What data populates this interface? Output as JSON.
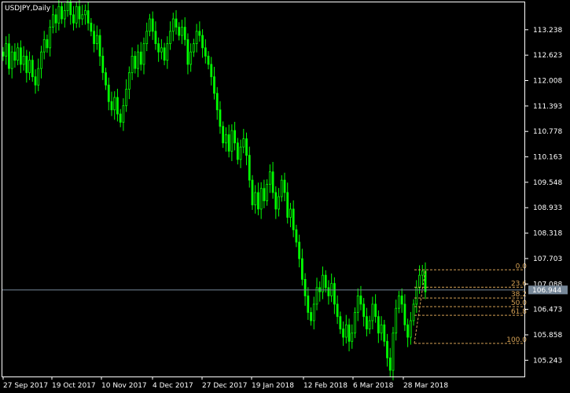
{
  "chart_title": "USDJPY,Daily",
  "colors": {
    "background": "#000000",
    "axis": "#ffffff",
    "candle": "#00ff00",
    "fibonacci": "#d4a054",
    "price_line": "#778899",
    "price_tag_bg": "#778899",
    "price_tag_text": "#ffffff"
  },
  "chart_data": {
    "type": "candlestick",
    "title": "USDJPY,Daily",
    "symbol": "USDJPY",
    "timeframe": "Daily",
    "y_ticks": [
      "113.238",
      "112.623",
      "112.008",
      "111.393",
      "110.778",
      "110.163",
      "109.548",
      "108.933",
      "108.318",
      "107.703",
      "107.088",
      "106.473",
      "105.858",
      "105.243"
    ],
    "x_ticks": [
      "27 Sep 2017",
      "19 Oct 2017",
      "10 Nov 2017",
      "4 Dec 2017",
      "27 Dec 2017",
      "19 Jan 2018",
      "12 Feb 2018",
      "6 Mar 2018",
      "28 Mar 2018"
    ],
    "ylim": [
      104.85,
      113.9
    ],
    "current_price": "106.944",
    "closes": [
      112.6,
      112.9,
      112.3,
      112.7,
      112.5,
      112.8,
      112.4,
      112.6,
      112.2,
      112.5,
      112.1,
      111.9,
      112.3,
      112.7,
      113.0,
      112.8,
      113.3,
      113.6,
      113.4,
      113.8,
      113.5,
      113.7,
      113.9,
      113.6,
      113.4,
      113.8,
      113.5,
      113.6,
      113.7,
      113.4,
      113.2,
      112.9,
      113.1,
      112.6,
      112.2,
      111.9,
      111.5,
      111.3,
      111.6,
      111.2,
      111.0,
      111.4,
      111.8,
      112.2,
      112.6,
      112.3,
      112.7,
      112.4,
      112.9,
      113.2,
      113.5,
      113.2,
      112.9,
      112.7,
      112.8,
      112.5,
      112.9,
      113.2,
      113.5,
      113.3,
      113.1,
      113.3,
      113.0,
      112.4,
      112.7,
      112.9,
      113.2,
      113.1,
      112.8,
      112.6,
      112.4,
      112.1,
      111.7,
      111.3,
      110.9,
      110.5,
      110.7,
      110.3,
      110.8,
      110.5,
      110.1,
      110.4,
      110.6,
      110.2,
      109.6,
      109.0,
      109.3,
      108.9,
      109.4,
      109.1,
      109.5,
      109.8,
      109.3,
      108.9,
      109.2,
      109.6,
      109.3,
      108.7,
      108.9,
      108.4,
      108.1,
      107.7,
      107.2,
      106.8,
      106.4,
      106.2,
      106.6,
      107.0,
      106.9,
      107.3,
      107.0,
      106.8,
      107.1,
      106.6,
      106.3,
      106.0,
      105.8,
      106.1,
      105.7,
      105.9,
      106.4,
      106.8,
      106.6,
      106.3,
      106.0,
      106.2,
      106.6,
      106.3,
      105.9,
      106.1,
      105.7,
      105.3,
      105.0,
      105.9,
      106.5,
      106.8,
      106.6,
      106.1,
      105.8,
      106.2,
      106.6,
      107.0,
      107.3,
      107.4,
      106.9
    ],
    "fibonacci": {
      "high": 107.43,
      "low": 105.65,
      "levels": [
        {
          "label": "0.0",
          "ratio": 0.0
        },
        {
          "label": "23.6",
          "ratio": 0.236
        },
        {
          "label": "38.2",
          "ratio": 0.382
        },
        {
          "label": "50.0",
          "ratio": 0.5
        },
        {
          "label": "61.8",
          "ratio": 0.618
        },
        {
          "label": "100.0",
          "ratio": 1.0
        }
      ]
    }
  }
}
